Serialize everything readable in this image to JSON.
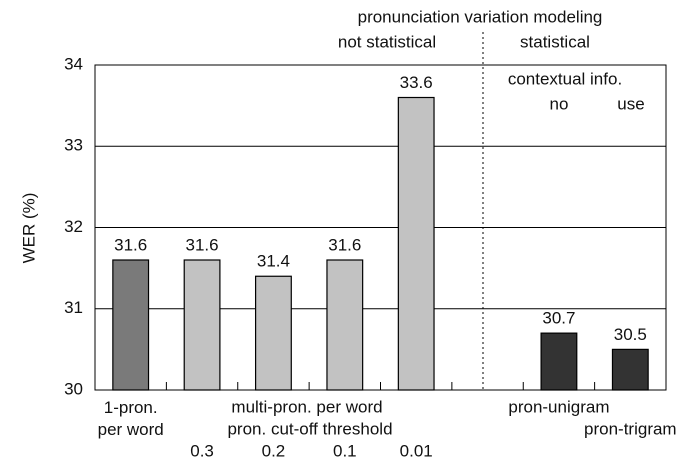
{
  "chart_data": {
    "type": "bar",
    "y_label": "WER (%)",
    "categories": [
      "1-pron. per word",
      "0.3",
      "0.2",
      "0.1",
      "0.01",
      null,
      "pron-unigram",
      "pron-trigram"
    ],
    "values": [
      31.6,
      31.6,
      31.4,
      31.6,
      33.6,
      null,
      30.7,
      30.5
    ],
    "colors": [
      "#7a7a7a",
      "#c2c2c2",
      "#c2c2c2",
      "#c2c2c2",
      "#c2c2c2",
      null,
      "#333333",
      "#333333"
    ],
    "ylim": [
      30,
      34
    ],
    "yticks": [
      30,
      31,
      32,
      33,
      34
    ],
    "grid": true,
    "annotations": [
      "pronunciation variation modeling",
      "not statistical",
      "statistical",
      "contextual info.",
      "no",
      "use",
      "multi-pron. per word",
      "pron. cut-off threshold"
    ]
  }
}
